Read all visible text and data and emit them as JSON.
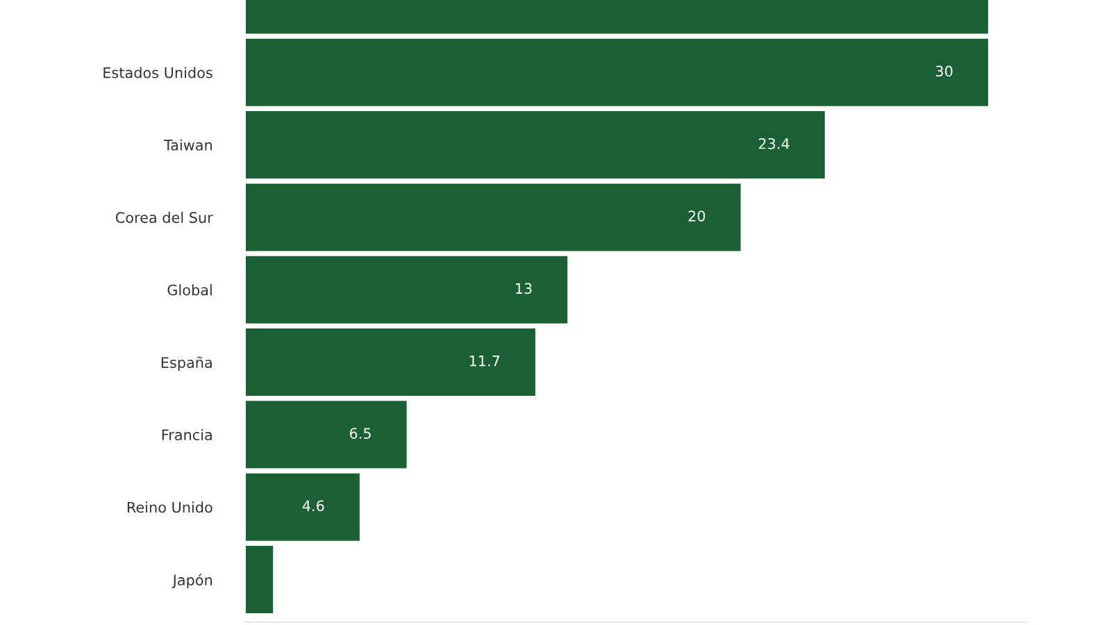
{
  "chart_data": {
    "type": "bar",
    "orientation": "horizontal",
    "categories": [
      null,
      "Estados Unidos",
      "Taiwan",
      "Corea del Sur",
      "Global",
      "España",
      "Francia",
      "Reino Unido",
      "Japón"
    ],
    "values": [
      30,
      30,
      23.4,
      20,
      13,
      11.7,
      6.5,
      4.6,
      1.1
    ],
    "value_labels": [
      null,
      "30",
      "23.4",
      "20",
      "13",
      "11.7",
      "6.5",
      "4.6",
      null
    ],
    "color": "#1a6032",
    "xlim": [
      0,
      31.6
    ],
    "tick_labels": "y",
    "grid": false,
    "legend": false
  }
}
